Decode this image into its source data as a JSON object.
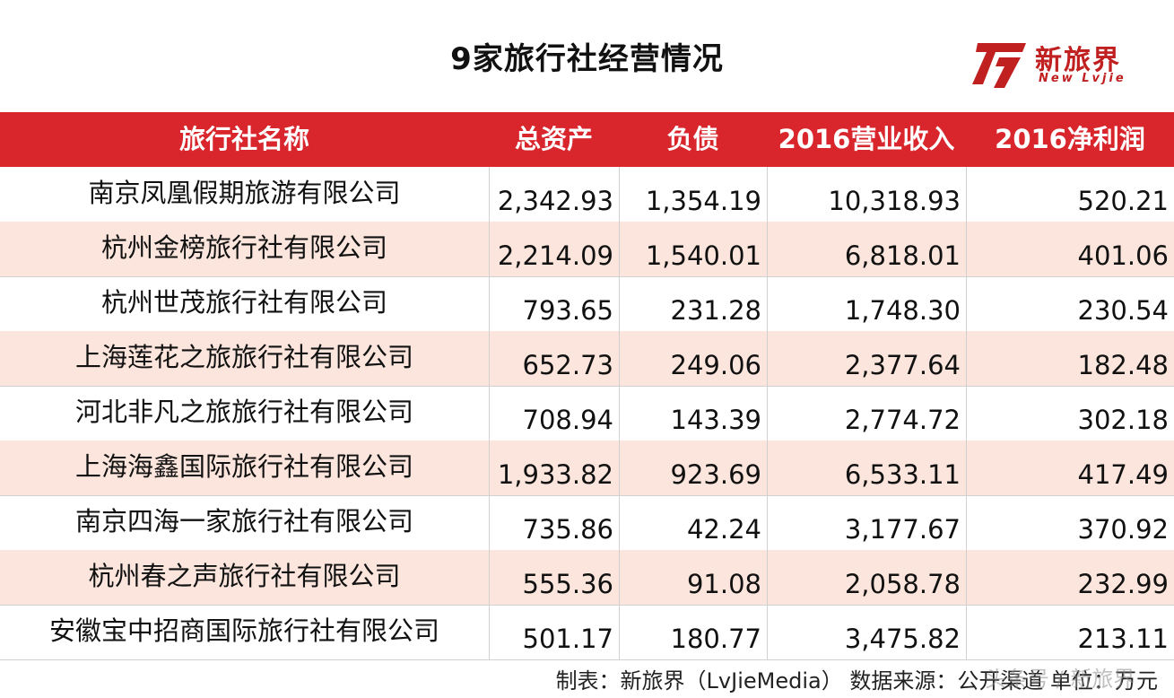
{
  "title": "9家旅行社经营情况",
  "logo": {
    "cn": "新旅界",
    "en": "New Lvjie"
  },
  "headers": [
    "旅行社名称",
    "总资产",
    "负债",
    "2016营业收入",
    "2016净利润"
  ],
  "rows": [
    [
      "南京凤凰假期旅游有限公司",
      "2,342.93",
      "1,354.19",
      "10,318.93",
      "520.21"
    ],
    [
      "杭州金榜旅行社有限公司",
      "2,214.09",
      "1,540.01",
      "6,818.01",
      "401.06"
    ],
    [
      "杭州世茂旅行社有限公司",
      "793.65",
      "231.28",
      "1,748.30",
      "230.54"
    ],
    [
      "上海莲花之旅旅行社有限公司",
      "652.73",
      "249.06",
      "2,377.64",
      "182.48"
    ],
    [
      "河北非凡之旅旅行社有限公司",
      "708.94",
      "143.39",
      "2,774.72",
      "302.18"
    ],
    [
      "上海海鑫国际旅行社有限公司",
      "1,933.82",
      "923.69",
      "6,533.11",
      "417.49"
    ],
    [
      "南京四海一家旅行社有限公司",
      "735.86",
      "42.24",
      "3,177.67",
      "370.92"
    ],
    [
      "杭州春之声旅行社有限公司",
      "555.36",
      "91.08",
      "2,058.78",
      "232.99"
    ],
    [
      "安徽宝中招商国际旅行社有限公司",
      "501.17",
      "180.77",
      "3,475.82",
      "213.11"
    ]
  ],
  "footer": "制表：新旅界（LvJieMedia） 数据来源：公开渠道  单位：万元",
  "watermark": "头条号 / 新旅界",
  "colors": {
    "header_bg": "#d8262c",
    "stripe": "#fbe5dc",
    "brand": "#c0201f"
  }
}
